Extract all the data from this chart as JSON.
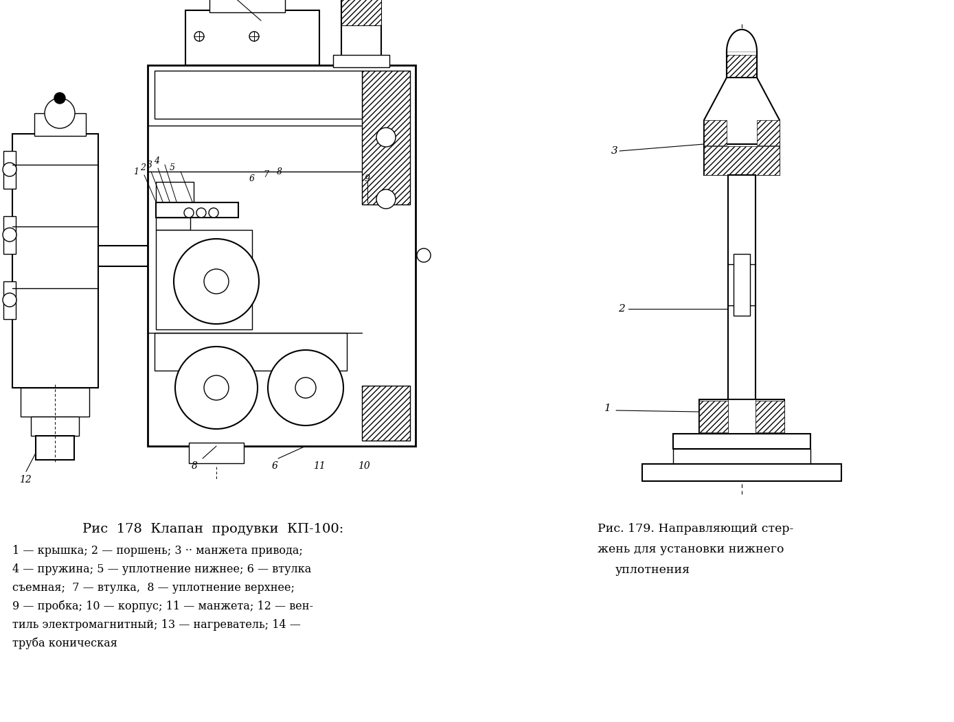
{
  "bg_color": "#ffffff",
  "fig_width": 13.89,
  "fig_height": 10.52,
  "dpi": 100,
  "caption_left_title": "Рис  178  Клапан  продувки  КП-100:",
  "caption_left_lines": [
    "1 — крышка; 2 — поршень; 3 ·· манжета привода;",
    "4 — пружина; 5 — уплотнение нижнее; 6 — втулка",
    "съемная;  7 — втулка,  8 — уплотнение верхнее;",
    "9 — пробка; 10 — корпус; 11 — манжета; 12 — вен-",
    "тиль электромагнитный; 13 — нагреватель; 14 —",
    "труба коническая"
  ],
  "caption_right_title": "Рис. 179. Направляющий стер-",
  "caption_right_line2": "жень для установки нижнего",
  "caption_right_line3": "уплотнения"
}
